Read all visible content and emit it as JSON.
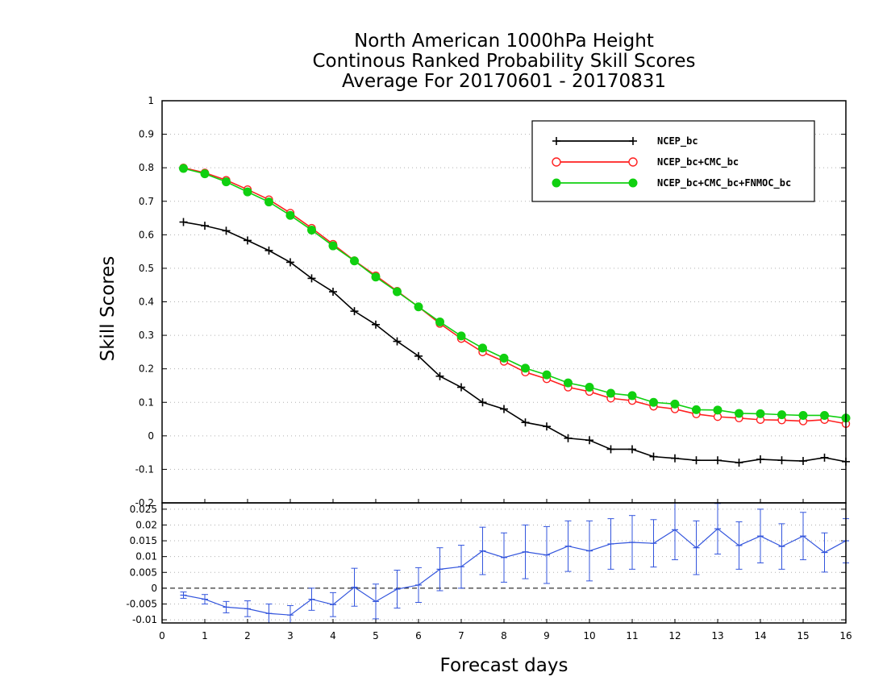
{
  "chart_data": [
    {
      "type": "line",
      "title": [
        "North American 1000hPa Height",
        "Continous Ranked Probability Skill Scores",
        "Average For 20170601 - 20170831"
      ],
      "ylabel": "Skill Scores",
      "ylim": [
        -0.2,
        1
      ],
      "yticks": [
        "1",
        "0.9",
        "0.8",
        "0.7",
        "0.6",
        "0.5",
        "0.4",
        "0.3",
        "0.2",
        "0.1",
        "0",
        "-0.1",
        "-0.2"
      ],
      "xlim": [
        0,
        16
      ],
      "grid": true,
      "legend_position": "top-right",
      "x": [
        0.5,
        1,
        1.5,
        2,
        2.5,
        3,
        3.5,
        4,
        4.5,
        5,
        5.5,
        6,
        6.5,
        7,
        7.5,
        8,
        8.5,
        9,
        9.5,
        10,
        10.5,
        11,
        11.5,
        12,
        12.5,
        13,
        13.5,
        14,
        14.5,
        15,
        15.5,
        16
      ],
      "series": [
        {
          "name": "NCEP_bc",
          "color": "#000000",
          "marker": "plus",
          "values": [
            0.638,
            0.627,
            0.612,
            0.583,
            0.553,
            0.518,
            0.47,
            0.43,
            0.372,
            0.332,
            0.282,
            0.238,
            0.178,
            0.145,
            0.1,
            0.08,
            0.04,
            0.028,
            -0.007,
            -0.013,
            -0.04,
            -0.04,
            -0.062,
            -0.067,
            -0.073,
            -0.073,
            -0.08,
            -0.07,
            -0.073,
            -0.075,
            -0.065,
            -0.077
          ]
        },
        {
          "name": "NCEP_bc+CMC_bc",
          "color": "#ff2020",
          "marker": "open-circle",
          "values": [
            0.8,
            0.785,
            0.763,
            0.735,
            0.705,
            0.665,
            0.62,
            0.572,
            0.523,
            0.478,
            0.432,
            0.385,
            0.335,
            0.29,
            0.25,
            0.222,
            0.19,
            0.17,
            0.145,
            0.132,
            0.112,
            0.105,
            0.088,
            0.08,
            0.065,
            0.057,
            0.053,
            0.048,
            0.047,
            0.044,
            0.048,
            0.036
          ]
        },
        {
          "name": "NCEP_bc+CMC_bc+FNMOC_bc",
          "color": "#10d010",
          "marker": "filled-circle",
          "values": [
            0.798,
            0.782,
            0.758,
            0.728,
            0.698,
            0.658,
            0.614,
            0.567,
            0.522,
            0.474,
            0.43,
            0.385,
            0.34,
            0.298,
            0.262,
            0.232,
            0.202,
            0.182,
            0.158,
            0.145,
            0.127,
            0.12,
            0.1,
            0.095,
            0.078,
            0.077,
            0.067,
            0.066,
            0.063,
            0.061,
            0.061,
            0.053
          ]
        }
      ]
    },
    {
      "type": "line",
      "xlabel": "Forecast days",
      "xticks": [
        "0",
        "1",
        "2",
        "3",
        "4",
        "5",
        "6",
        "7",
        "8",
        "9",
        "10",
        "11",
        "12",
        "13",
        "14",
        "15",
        "16"
      ],
      "ylim": [
        -0.011,
        0.027
      ],
      "yticks": [
        "0.025",
        "0.02",
        "0.015",
        "0.01",
        "0.005",
        "0",
        "-0.005",
        "-0.01"
      ],
      "grid": true,
      "zero_line": true,
      "color": "#3355dd",
      "x": [
        0.5,
        1,
        1.5,
        2,
        2.5,
        3,
        3.5,
        4,
        4.5,
        5,
        5.5,
        6,
        6.5,
        7,
        7.5,
        8,
        8.5,
        9,
        9.5,
        10,
        10.5,
        11,
        11.5,
        12,
        12.5,
        13,
        13.5,
        14,
        14.5,
        15,
        15.5,
        16
      ],
      "values": [
        -0.0022,
        -0.0035,
        -0.006,
        -0.0065,
        -0.008,
        -0.0085,
        -0.0035,
        -0.0052,
        0.0003,
        -0.0042,
        -0.0003,
        0.001,
        0.006,
        0.0068,
        0.0118,
        0.0097,
        0.0115,
        0.0105,
        0.0133,
        0.0118,
        0.014,
        0.0145,
        0.0142,
        0.0185,
        0.0128,
        0.0188,
        0.0135,
        0.0165,
        0.0132,
        0.0165,
        0.0113,
        0.015
      ],
      "error": [
        0.001,
        0.0015,
        0.0018,
        0.0025,
        0.003,
        0.003,
        0.0035,
        0.0038,
        0.006,
        0.0055,
        0.006,
        0.0055,
        0.0068,
        0.0068,
        0.0075,
        0.0078,
        0.0085,
        0.009,
        0.008,
        0.0095,
        0.008,
        0.0085,
        0.0075,
        0.0095,
        0.0085,
        0.008,
        0.0075,
        0.0085,
        0.0072,
        0.0075,
        0.0062,
        0.007
      ]
    }
  ]
}
